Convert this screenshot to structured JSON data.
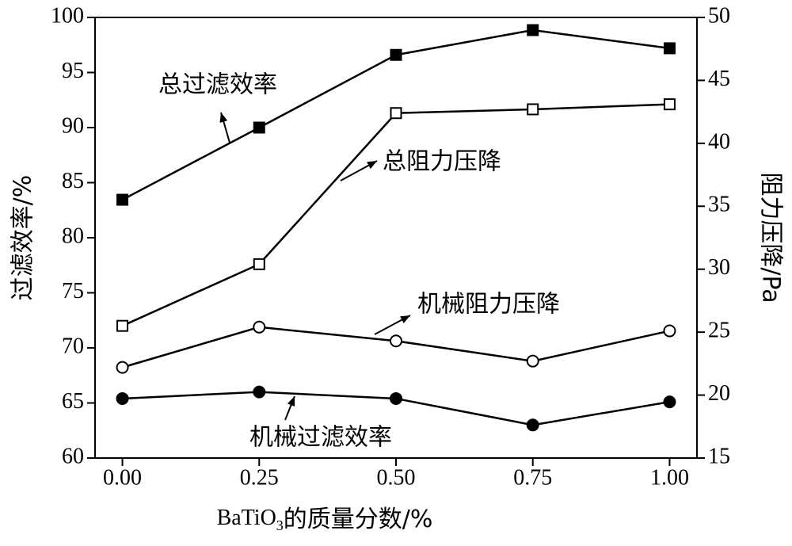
{
  "chart_data": {
    "type": "line",
    "xlabel_parts": [
      "BaTiO",
      "3",
      "的质量分数/%"
    ],
    "ylabel": "过滤效率/%",
    "y2label": "阻力压降/Pa",
    "x": [
      0,
      0.25,
      0.5,
      0.75,
      1
    ],
    "xlim": [
      -0.05,
      1.05
    ],
    "xticks": [
      {
        "value": 0,
        "label": "0.00"
      },
      {
        "value": 0.25,
        "label": "0.25"
      },
      {
        "value": 0.5,
        "label": "0.50"
      },
      {
        "value": 0.75,
        "label": "0.75"
      },
      {
        "value": 1,
        "label": "1.00"
      }
    ],
    "ylim": [
      60,
      100
    ],
    "yticks": [
      60,
      65,
      70,
      75,
      80,
      85,
      90,
      95,
      100
    ],
    "y2lim": [
      15,
      50
    ],
    "y2ticks": [
      15,
      20,
      25,
      30,
      35,
      40,
      45,
      50
    ],
    "series": [
      {
        "name": "总过滤效率",
        "color": "#000000",
        "marker": "square",
        "filled": true,
        "values": [
          83.45,
          90.0,
          96.6,
          98.85,
          97.2
        ]
      },
      {
        "name": "机械过滤效率",
        "color": "#000000",
        "marker": "circle",
        "filled": true,
        "values": [
          65.4,
          66.0,
          65.4,
          63.0,
          65.1
        ]
      },
      {
        "name": "总阻力压降",
        "color": "#000000",
        "marker": "square",
        "filled": false,
        "axis": "y2",
        "values": [
          25.5,
          30.4,
          42.4,
          42.7,
          43.1
        ]
      },
      {
        "name": "机械阻力压降",
        "color": "#000000",
        "marker": "circle",
        "filled": false,
        "axis": "y2",
        "values": [
          22.2,
          25.4,
          24.3,
          22.7,
          25.1
        ]
      }
    ]
  }
}
